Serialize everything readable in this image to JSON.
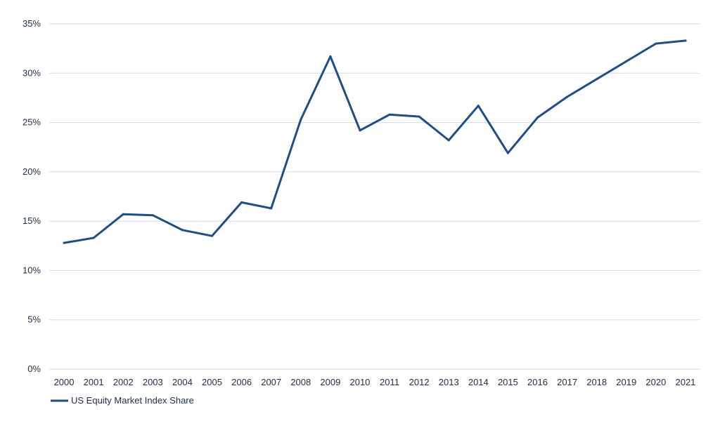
{
  "chart_data": {
    "type": "line",
    "title": "",
    "xlabel": "",
    "ylabel": "",
    "x": [
      "2000",
      "2001",
      "2002",
      "2003",
      "2004",
      "2005",
      "2006",
      "2007",
      "2008",
      "2009",
      "2010",
      "2011",
      "2012",
      "2013",
      "2014",
      "2015",
      "2016",
      "2017",
      "2018",
      "2019",
      "2020",
      "2021"
    ],
    "series": [
      {
        "name": "US Equity Market Index Share",
        "color": "#1f4e86",
        "values": [
          12.8,
          13.3,
          15.7,
          15.6,
          14.1,
          13.5,
          16.9,
          16.3,
          25.3,
          31.7,
          24.2,
          25.8,
          25.6,
          23.2,
          26.7,
          21.9,
          25.5,
          27.6,
          29.4,
          31.2,
          33.0,
          33.3
        ]
      }
    ],
    "yticks": [
      "0%",
      "5%",
      "10%",
      "15%",
      "20%",
      "25%",
      "30%",
      "35%"
    ],
    "ylim": [
      0,
      35
    ],
    "grid": true,
    "legend_position": "bottom-left"
  }
}
